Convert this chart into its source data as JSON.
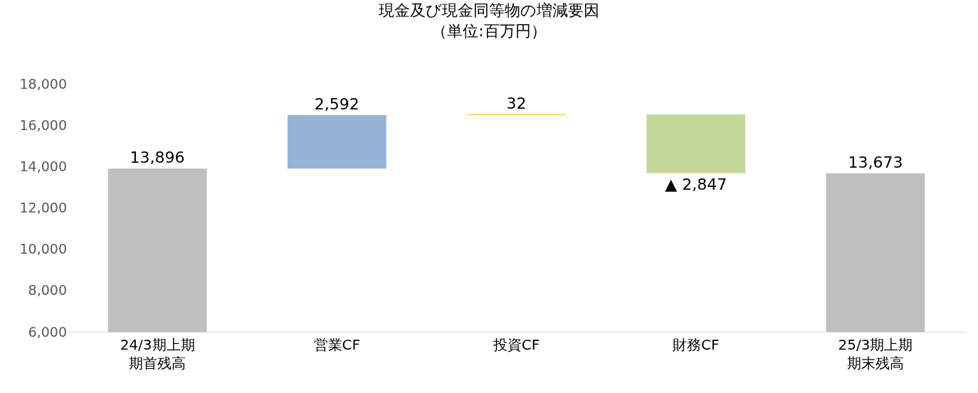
{
  "chart_data": {
    "type": "bar",
    "title": "現金及び現金同等物の増減要因",
    "subtitle": "（単位:百万円）",
    "categories": [
      "24/3期上期期首残高",
      "営業CF",
      "投資CF",
      "財務CF",
      "25/3期上期期末残高"
    ],
    "values": [
      13896,
      2592,
      32,
      -2847,
      13673
    ],
    "base": [
      0,
      13896,
      16488,
      16520,
      0
    ],
    "colors": [
      "#bfbfbf",
      "#95b3d7",
      "#ffc000",
      "#c4d79b",
      "#bfbfbf"
    ],
    "value_labels": [
      "13,896",
      "2,592",
      "32",
      "▲ 2,847",
      "13,673"
    ],
    "ylim": [
      6000,
      18000
    ],
    "yticks": [
      {
        "value": 6000,
        "label": "6,000"
      },
      {
        "value": 8000,
        "label": "8,000"
      },
      {
        "value": 10000,
        "label": "10,000"
      },
      {
        "value": 12000,
        "label": "12,000"
      },
      {
        "value": 14000,
        "label": "14,000"
      },
      {
        "value": 16000,
        "label": "16,000"
      },
      {
        "value": 18000,
        "label": "18,000"
      }
    ],
    "grid": false,
    "legend": false
  }
}
